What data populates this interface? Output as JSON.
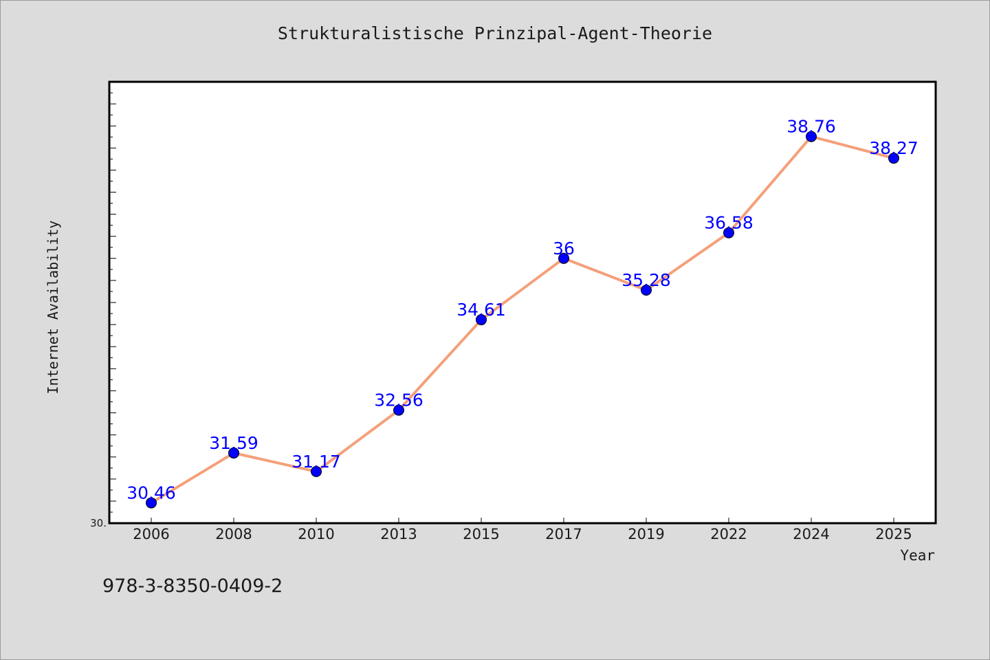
{
  "chart_data": {
    "type": "line",
    "title": "Strukturalistische Prinzipal-Agent-Theorie",
    "xlabel": "Year",
    "ylabel": "Internet Availability",
    "categories": [
      "2006",
      "2008",
      "2010",
      "2013",
      "2015",
      "2017",
      "2019",
      "2022",
      "2024",
      "2025"
    ],
    "series": [
      {
        "values": [
          30.46,
          31.59,
          31.17,
          32.56,
          34.61,
          36,
          35.28,
          36.58,
          38.76,
          38.27
        ],
        "data_labels": [
          "30.46",
          "31.59",
          "31.17",
          "32.56",
          "34.61",
          "36",
          "35.28",
          "36.58",
          "38.76",
          "38.27"
        ],
        "line_color": "#f4a07a",
        "marker_color": "#0000ff"
      }
    ],
    "ylim": [
      30,
      40
    ],
    "y_tick_labels": [
      "30."
    ],
    "grid": false,
    "legend": "none"
  },
  "footer": {
    "code": "978-3-8350-0409-2"
  }
}
